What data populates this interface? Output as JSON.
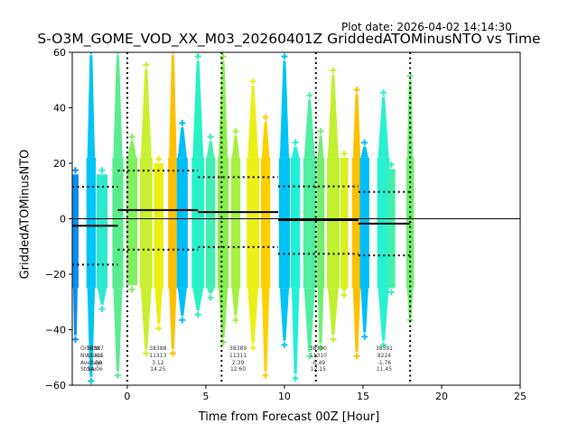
{
  "plot_date": "Plot date: 2026-04-02 14:14:30",
  "chart_data": {
    "type": "scatter",
    "title": "S-O3M_GOME_VOD_XX_M03_20260401Z GriddedATOMinusNTO vs Time",
    "xlabel": "Time from Forecast 00Z [Hour]",
    "ylabel": "GriddedATOMinusNTO",
    "xlim": [
      -3.5,
      25
    ],
    "ylim": [
      -60,
      60
    ],
    "xticks": [
      0,
      5,
      10,
      15,
      20,
      25
    ],
    "xtick_labels": [
      "0",
      "5",
      "10",
      "15",
      "20",
      "25"
    ],
    "yticks": [
      -60,
      -40,
      -20,
      0,
      20,
      40,
      60
    ],
    "ytick_labels": [
      "−60",
      "−40",
      "−20",
      "0",
      "20",
      "40",
      "60"
    ],
    "grid": false,
    "zero_line": 0,
    "forecast_lines": [
      0,
      6,
      12,
      18
    ],
    "stats_header": [
      "OrbitNr",
      "NValues",
      "Average",
      "Stdev"
    ],
    "orbits": [
      {
        "orbit": "38387",
        "nvalues": "11315",
        "average": "-2.50",
        "stdev": "14.06",
        "x_start": -3.5,
        "x_end": -0.6,
        "mean": -2.5,
        "std": 14.06
      },
      {
        "orbit": "38388",
        "nvalues": "11313",
        "average": "3.12",
        "stdev": "14.25",
        "x_start": -0.6,
        "x_end": 4.5,
        "mean": 3.12,
        "std": 14.25
      },
      {
        "orbit": "38389",
        "nvalues": "11311",
        "average": "2.39",
        "stdev": "12.60",
        "x_start": 4.5,
        "x_end": 9.6,
        "mean": 2.39,
        "std": 12.6
      },
      {
        "orbit": "38390",
        "nvalues": "11310",
        "average": "-0.49",
        "stdev": "12.15",
        "x_start": 9.6,
        "x_end": 14.7,
        "mean": -0.49,
        "std": 12.15
      },
      {
        "orbit": "38391",
        "nvalues": "8224",
        "average": "-1.76",
        "stdev": "11.45",
        "x_start": 14.7,
        "x_end": 18.0,
        "mean": -1.76,
        "std": 11.45
      }
    ],
    "scan_columns": [
      {
        "x": -3.3,
        "w": 0.4,
        "top": 16,
        "bottom": -42,
        "color": "#0a8ef0"
      },
      {
        "x": -2.3,
        "w": 0.6,
        "top": 59,
        "bottom": -57,
        "color": "#00c4f5"
      },
      {
        "x": -1.6,
        "w": 0.7,
        "top": 16,
        "bottom": -31,
        "color": "#2ee8d0"
      },
      {
        "x": -0.6,
        "w": 0.7,
        "top": 59,
        "bottom": -55,
        "color": "#5aec90"
      },
      {
        "x": 0.3,
        "w": 0.7,
        "top": 28,
        "bottom": -24,
        "color": "#80f060"
      },
      {
        "x": 1.2,
        "w": 0.8,
        "top": 54,
        "bottom": -47,
        "color": "#c8f030"
      },
      {
        "x": 2.0,
        "w": 0.6,
        "top": 20,
        "bottom": -38,
        "color": "#e8f010"
      },
      {
        "x": 2.9,
        "w": 0.6,
        "top": 59,
        "bottom": -47,
        "color": "#ffc000"
      },
      {
        "x": 3.5,
        "w": 0.7,
        "top": 33,
        "bottom": -35,
        "color": "#00bff8"
      },
      {
        "x": 4.5,
        "w": 0.8,
        "top": 57,
        "bottom": -33,
        "color": "#28f0c8"
      },
      {
        "x": 5.3,
        "w": 0.6,
        "top": 28,
        "bottom": -27,
        "color": "#40f0b0"
      },
      {
        "x": 6.1,
        "w": 0.7,
        "top": 57,
        "bottom": -43,
        "color": "#88ee50"
      },
      {
        "x": 6.9,
        "w": 0.6,
        "top": 30,
        "bottom": -35,
        "color": "#a8f040"
      },
      {
        "x": 8.0,
        "w": 0.8,
        "top": 48,
        "bottom": -45,
        "color": "#ecf018"
      },
      {
        "x": 8.8,
        "w": 0.6,
        "top": 35,
        "bottom": -55,
        "color": "#ffd000"
      },
      {
        "x": 10.0,
        "w": 0.7,
        "top": 57,
        "bottom": -44,
        "color": "#00c4f5"
      },
      {
        "x": 10.7,
        "w": 0.6,
        "top": 26,
        "bottom": -56,
        "color": "#20f0d8"
      },
      {
        "x": 11.6,
        "w": 0.8,
        "top": 43,
        "bottom": -48,
        "color": "#50eea0"
      },
      {
        "x": 12.3,
        "w": 0.5,
        "top": 30,
        "bottom": -45,
        "color": "#70ee70"
      },
      {
        "x": 13.1,
        "w": 0.8,
        "top": 52,
        "bottom": -42,
        "color": "#c0f030"
      },
      {
        "x": 13.8,
        "w": 0.5,
        "top": 22,
        "bottom": -26,
        "color": "#d8f020"
      },
      {
        "x": 14.6,
        "w": 0.6,
        "top": 45,
        "bottom": -48,
        "color": "#ffc000"
      },
      {
        "x": 15.1,
        "w": 0.6,
        "top": 26,
        "bottom": -41,
        "color": "#00bff8"
      },
      {
        "x": 16.3,
        "w": 0.8,
        "top": 44,
        "bottom": -44,
        "color": "#28f0d0"
      },
      {
        "x": 16.8,
        "w": 0.5,
        "top": 18,
        "bottom": -25,
        "color": "#40f0b0"
      },
      {
        "x": 18.0,
        "w": 0.5,
        "top": 50,
        "bottom": -35,
        "color": "#70ee70"
      }
    ]
  }
}
